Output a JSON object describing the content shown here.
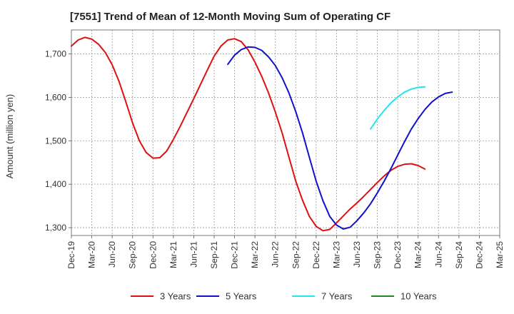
{
  "chart_data": {
    "type": "line",
    "title": "[7551]  Trend of Mean of 12-Month Moving Sum of Operating CF",
    "xlabel": "",
    "ylabel": "Amount (million yen)",
    "ylim": [
      1282,
      1755
    ],
    "yticks": [
      1300,
      1400,
      1500,
      1600,
      1700
    ],
    "ytick_labels": [
      "1,300",
      "1,400",
      "1,500",
      "1,600",
      "1,700"
    ],
    "grid": true,
    "x_start": "Dec-19",
    "x_end": "Mar-25",
    "xtick_labels": [
      "Dec-19",
      "Mar-20",
      "Jun-20",
      "Sep-20",
      "Dec-20",
      "Mar-21",
      "Jun-21",
      "Sep-21",
      "Dec-21",
      "Mar-22",
      "Jun-22",
      "Sep-22",
      "Dec-22",
      "Mar-23",
      "Jun-23",
      "Sep-23",
      "Dec-23",
      "Mar-24",
      "Jun-24",
      "Sep-24",
      "Dec-24",
      "Mar-25"
    ],
    "legend_position": "bottom",
    "series": [
      {
        "name": "3 Years",
        "color": "#dd1111",
        "start": "Dec-19",
        "values": [
          1718,
          1732,
          1738,
          1734,
          1722,
          1703,
          1675,
          1637,
          1590,
          1541,
          1500,
          1473,
          1460,
          1461,
          1476,
          1503,
          1533,
          1565,
          1597,
          1630,
          1663,
          1695,
          1718,
          1732,
          1735,
          1728,
          1709,
          1681,
          1648,
          1610,
          1566,
          1518,
          1462,
          1407,
          1363,
          1326,
          1303,
          1293,
          1296,
          1311,
          1327,
          1343,
          1357,
          1372,
          1388,
          1404,
          1419,
          1432,
          1441,
          1446,
          1447,
          1443,
          1435
        ]
      },
      {
        "name": "5 Years",
        "color": "#1111cc",
        "start": "Nov-21",
        "values": [
          1676,
          1697,
          1710,
          1716,
          1715,
          1708,
          1693,
          1673,
          1645,
          1610,
          1567,
          1518,
          1462,
          1407,
          1362,
          1326,
          1306,
          1297,
          1301,
          1316,
          1334,
          1355,
          1380,
          1407,
          1436,
          1467,
          1498,
          1527,
          1551,
          1572,
          1589,
          1601,
          1609,
          1612
        ]
      },
      {
        "name": "7 Years",
        "color": "#22e6f0",
        "start": "Aug-23",
        "values": [
          1527,
          1550,
          1570,
          1587,
          1601,
          1612,
          1619,
          1623,
          1624
        ]
      },
      {
        "name": "10 Years",
        "color": "#228822",
        "start": "",
        "values": []
      }
    ]
  }
}
